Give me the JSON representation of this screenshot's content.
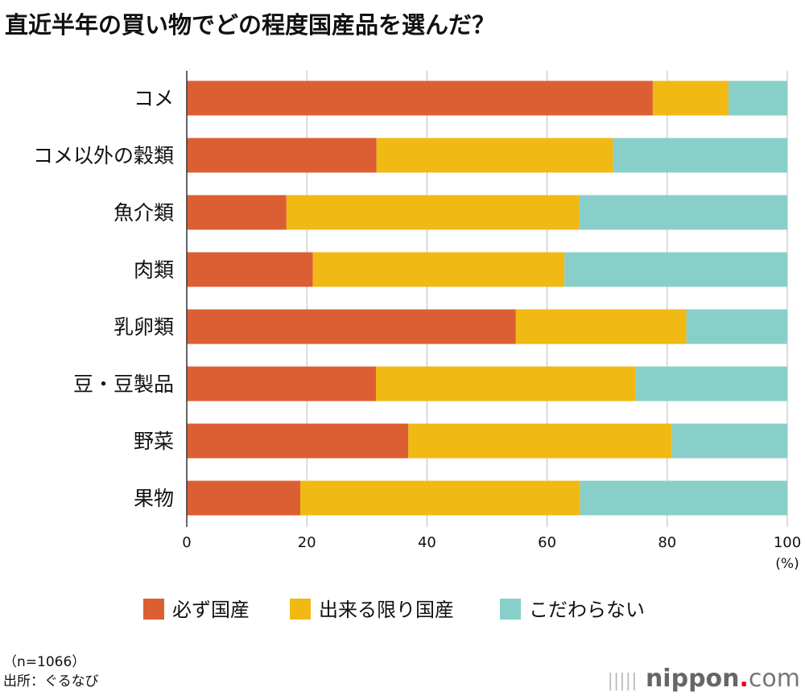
{
  "chart_data": {
    "type": "bar",
    "orientation": "horizontal",
    "stacked": true,
    "title": "直近半年の買い物でどの程度国産品を選んだ？",
    "categories": [
      "コメ",
      "コメ以外の穀類",
      "魚介類",
      "肉類",
      "乳卵類",
      "豆・豆製品",
      "野菜",
      "果物"
    ],
    "series": [
      {
        "name": "必ず国産",
        "color": "#dc5f33",
        "values": [
          77.6,
          31.6,
          16.6,
          21.0,
          54.8,
          31.5,
          36.9,
          18.9
        ]
      },
      {
        "name": "出来る限り国産",
        "color": "#f0b914",
        "values": [
          12.6,
          39.4,
          48.8,
          41.9,
          28.4,
          43.2,
          43.9,
          46.6
        ]
      },
      {
        "name": "こだわらない",
        "color": "#89cfc9",
        "values": [
          9.8,
          29.0,
          34.6,
          37.1,
          16.8,
          25.3,
          19.2,
          34.5
        ]
      }
    ],
    "xlim": [
      0,
      100
    ],
    "xticks": [
      "0",
      "20",
      "40",
      "60",
      "80",
      "100"
    ],
    "xunit": "(%)",
    "grid": true,
    "legend": "bottom"
  },
  "notes": {
    "n": "（n=1066）",
    "source": "出所：ぐるなび"
  },
  "logo": {
    "name": "nippon",
    "dot": ".",
    "com": "com"
  }
}
